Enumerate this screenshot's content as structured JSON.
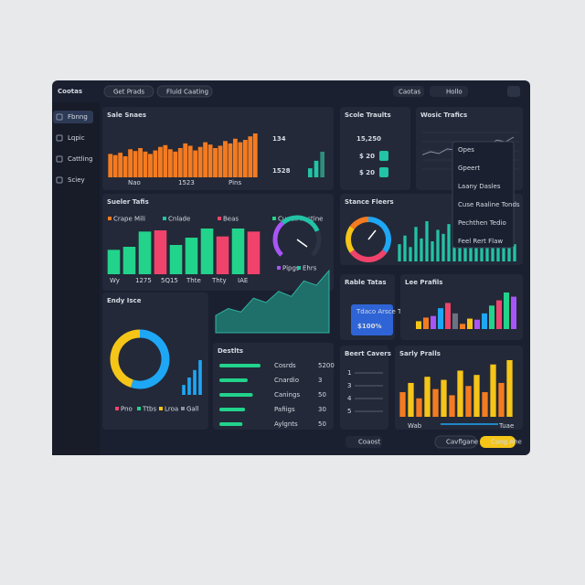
{
  "header": {
    "title": "Cootas",
    "tabs": [
      "Get Prads",
      "Fluid Caating"
    ],
    "menu": "Caotas",
    "user": "Hollo"
  },
  "sidebar": {
    "items": [
      "Fbnng",
      "Lqpic",
      "Cattling",
      "Sciey"
    ]
  },
  "sales": {
    "title": "Sale Snaes",
    "values": [
      40,
      38,
      42,
      36,
      48,
      45,
      50,
      44,
      40,
      46,
      52,
      55,
      48,
      44,
      50,
      58,
      54,
      46,
      52,
      60,
      56,
      50,
      54,
      62,
      58,
      66,
      60,
      64,
      70,
      75
    ],
    "color": "#f47b20",
    "labels": [
      "Nao",
      "1523",
      "Pins"
    ],
    "stat1": "134",
    "stat2": "1528",
    "mini": [
      30,
      55,
      85
    ],
    "mini_colors": [
      "#22c3a6",
      "#22c3a6",
      "#2f8f7d"
    ]
  },
  "score": {
    "title": "Scole Traults",
    "big": "15,250",
    "line1": "$ 20",
    "line2": "$ 20"
  },
  "web": {
    "title": "Wosic Trafics",
    "values": [
      40,
      45,
      42,
      50,
      48,
      55,
      52,
      60,
      58,
      65,
      62,
      70
    ],
    "menu": [
      "Opes",
      "Gpeert",
      "Laany Dasles",
      "Cuse Raaline Tonds",
      "Pechthen Tedio",
      "Feel Rert Flaw"
    ]
  },
  "sueler": {
    "title": "Sueler Tafis",
    "legend": [
      "Crape Mili",
      "Cnlade",
      "Beas",
      "Cunell Pastine"
    ],
    "values": [
      40,
      45,
      70,
      72,
      48,
      60,
      75,
      62,
      75,
      70
    ],
    "colors": [
      "#22d38b",
      "#22d38b",
      "#22d38b",
      "#f0436b",
      "#22d38b",
      "#22d38b",
      "#22d38b",
      "#f0436b",
      "#22d38b",
      "#f0436b"
    ],
    "xlabels": [
      "Wy",
      "1275",
      "5Q15",
      "Thte",
      "Thty",
      "IAE"
    ],
    "gauge": [
      35,
      40,
      25
    ],
    "gauge_colors": [
      "#a855f7",
      "#22c3a6",
      "#2c3345"
    ],
    "gauge_legend": [
      "Pipgs",
      "Ehrs"
    ],
    "area": [
      20,
      28,
      24,
      40,
      35,
      48,
      42,
      60,
      55,
      72
    ]
  },
  "stance": {
    "title": "Stance Fleers",
    "donut": [
      35,
      30,
      20,
      15
    ],
    "donut_colors": [
      "#1ea7f5",
      "#f0436b",
      "#f5c518",
      "#f47b20"
    ],
    "values": [
      30,
      45,
      25,
      60,
      40,
      70,
      35,
      55,
      48,
      65,
      30,
      50,
      42,
      58,
      38,
      62,
      28,
      45,
      52,
      40,
      35,
      30
    ]
  },
  "endy": {
    "title": "Endy Isce",
    "donut": [
      55,
      45
    ],
    "donut_colors": [
      "#1ea7f5",
      "#f5c518"
    ],
    "values": [
      20,
      35,
      50,
      70
    ],
    "legend": [
      "Pno",
      "Ttbs",
      "Lroa",
      "Gall"
    ]
  },
  "rable": {
    "title": "Rable Tatas",
    "card": "Tdaco Arsce Topet",
    "big": "$100%"
  },
  "lee": {
    "title": "Lee Prafils",
    "values": [
      15,
      22,
      25,
      40,
      50,
      30,
      10,
      20,
      18,
      30,
      45,
      55,
      70,
      62
    ],
    "colors": [
      "#f5c518",
      "#f47b20",
      "#a855f7",
      "#1ea7f5",
      "#f0436b",
      "#6b7280",
      "#f47b20",
      "#f5c518",
      "#a855f7",
      "#1ea7f5",
      "#22d38b",
      "#f0436b",
      "#22d38b",
      "#a855f7"
    ]
  },
  "destlts": {
    "title": "Destlts",
    "labels": [
      "Cosrds",
      "Cnardio",
      "Canings",
      "Pafiigs",
      "Aylgnts"
    ],
    "numbers": [
      "5200",
      "3",
      "50",
      "30",
      "50"
    ],
    "values": [
      80,
      55,
      65,
      50,
      45
    ]
  },
  "beert": {
    "title": "Beert Cavers",
    "items": [
      "1",
      "3",
      "4",
      "5"
    ]
  },
  "sarly": {
    "title": "Sarly Pralls",
    "values": [
      40,
      55,
      30,
      65,
      45,
      60,
      35,
      75,
      50,
      68,
      40,
      85,
      55,
      92
    ],
    "colors": [
      "#f47b20",
      "#f5c518",
      "#f47b20",
      "#f5c518",
      "#f47b20",
      "#f5c518",
      "#f47b20",
      "#f5c518",
      "#f47b20",
      "#f5c518",
      "#f47b20",
      "#f5c518",
      "#f47b20",
      "#f5c518"
    ],
    "labels": [
      "Wab",
      "Tuae"
    ]
  },
  "footer": {
    "select": "Coaost",
    "button1": "Cavflgane",
    "button2": "Cang Ahe"
  }
}
